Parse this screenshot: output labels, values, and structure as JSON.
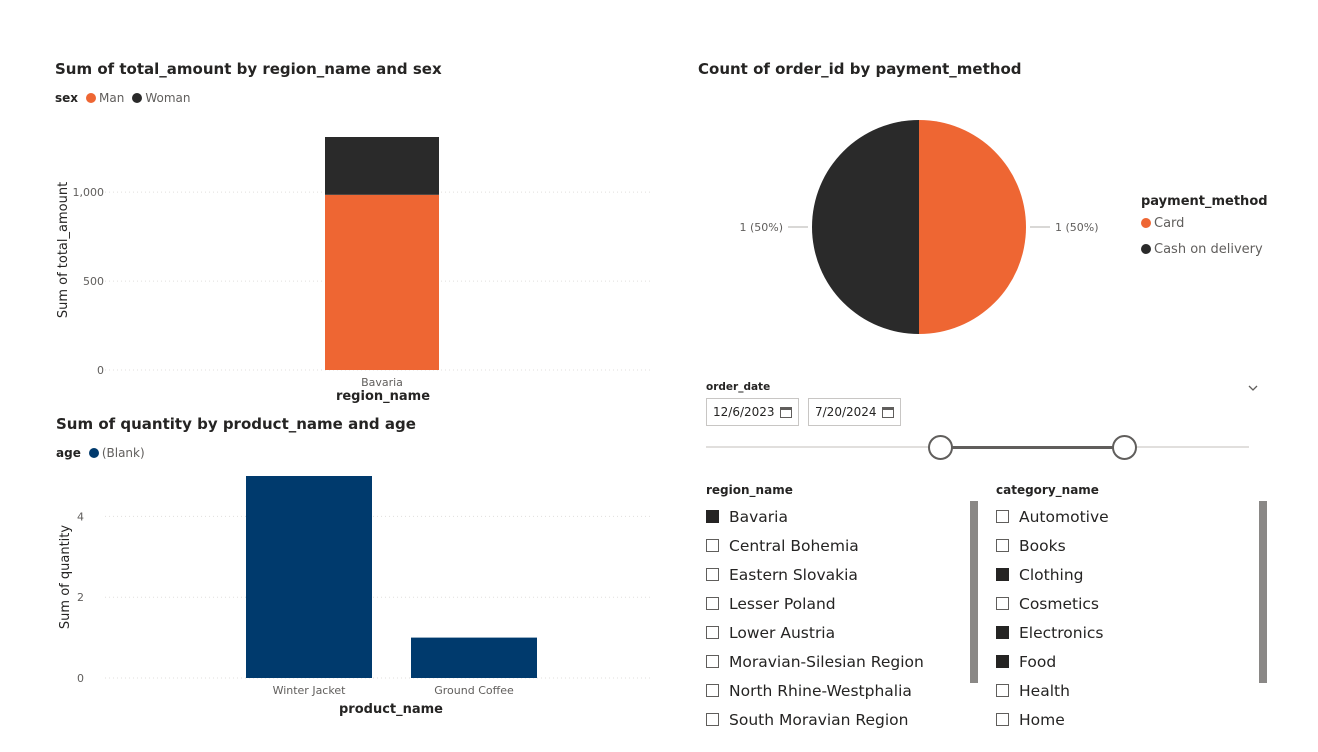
{
  "visual1": {
    "title": "Sum of total_amount by region_name and sex",
    "legend_title": "sex",
    "legend_items": [
      {
        "label": "Man",
        "color": "#EE6633"
      },
      {
        "label": "Woman",
        "color": "#2A2A2A"
      }
    ],
    "ylabel": "Sum of total_amount",
    "xlabel": "region_name",
    "yticks": [
      "0",
      "500",
      "1,000"
    ]
  },
  "visual2": {
    "title": "Count of order_id by payment_method",
    "legend_title": "payment_method",
    "legend_items": [
      {
        "label": "Card",
        "color": "#EE6633"
      },
      {
        "label": "Cash on delivery",
        "color": "#2A2A2A"
      }
    ],
    "labels": [
      "1 (50%)",
      "1 (50%)"
    ]
  },
  "visual3": {
    "title": "Sum of quantity by product_name and age",
    "legend_title": "age",
    "legend_items": [
      {
        "label": "(Blank)",
        "color": "#003A6D"
      }
    ],
    "ylabel": "Sum of quantity",
    "xlabel": "product_name",
    "yticks": [
      "0",
      "2",
      "4"
    ]
  },
  "date_slicer": {
    "title": "order_date",
    "start": "12/6/2023",
    "end": "7/20/2024"
  },
  "region_slicer": {
    "title": "region_name",
    "items": [
      {
        "label": "Bavaria",
        "checked": true
      },
      {
        "label": "Central Bohemia",
        "checked": false
      },
      {
        "label": "Eastern Slovakia",
        "checked": false
      },
      {
        "label": "Lesser Poland",
        "checked": false
      },
      {
        "label": "Lower Austria",
        "checked": false
      },
      {
        "label": "Moravian-Silesian Region",
        "checked": false
      },
      {
        "label": "North Rhine-Westphalia",
        "checked": false
      },
      {
        "label": "South Moravian Region",
        "checked": false
      }
    ]
  },
  "category_slicer": {
    "title": "category_name",
    "items": [
      {
        "label": "Automotive",
        "checked": false
      },
      {
        "label": "Books",
        "checked": false
      },
      {
        "label": "Clothing",
        "checked": true
      },
      {
        "label": "Cosmetics",
        "checked": false
      },
      {
        "label": "Electronics",
        "checked": true
      },
      {
        "label": "Food",
        "checked": true
      },
      {
        "label": "Health",
        "checked": false
      },
      {
        "label": "Home",
        "checked": false
      }
    ]
  },
  "chart_data": [
    {
      "type": "bar",
      "stacked": true,
      "title": "Sum of total_amount by region_name and sex",
      "xlabel": "region_name",
      "ylabel": "Sum of total_amount",
      "categories": [
        "Bavaria"
      ],
      "series": [
        {
          "name": "Man",
          "values": [
            985
          ]
        },
        {
          "name": "Woman",
          "values": [
            325
          ]
        }
      ],
      "ylim": [
        0,
        1310
      ],
      "yticks": [
        0,
        500,
        1000
      ],
      "grid": true,
      "legend": "top-left"
    },
    {
      "type": "pie",
      "title": "Count of order_id by payment_method",
      "categories": [
        "Card",
        "Cash on delivery"
      ],
      "values": [
        1,
        1
      ],
      "data_labels": [
        "1 (50%)",
        "1 (50%)"
      ],
      "legend": "right"
    },
    {
      "type": "bar",
      "title": "Sum of quantity by product_name and age",
      "xlabel": "product_name",
      "ylabel": "Sum of quantity",
      "categories": [
        "Winter Jacket",
        "Ground Coffee"
      ],
      "series": [
        {
          "name": "(Blank)",
          "values": [
            5,
            1
          ]
        }
      ],
      "ylim": [
        0,
        5
      ],
      "yticks": [
        0,
        2,
        4
      ],
      "grid": true,
      "legend": "top-left"
    }
  ]
}
